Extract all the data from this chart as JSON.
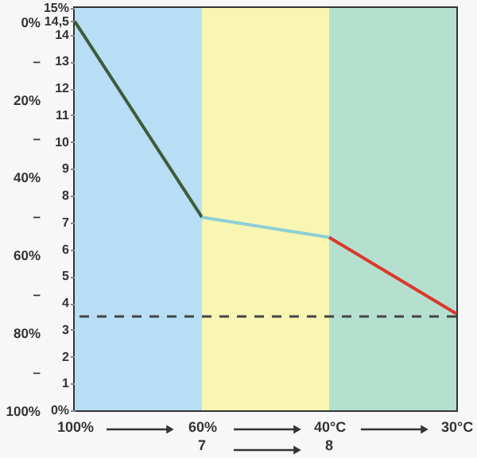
{
  "chart_data": {
    "type": "line",
    "categories": [
      "100%",
      "60%",
      "40°C",
      "30°C"
    ],
    "series": [
      {
        "color": "#3d5c3a",
        "values": [
          14.5,
          7.2,
          null,
          null
        ]
      },
      {
        "color": "#8ccfd6",
        "values": [
          null,
          7.2,
          6.45,
          null
        ]
      },
      {
        "color": "#d93a2a",
        "values": [
          null,
          null,
          6.45,
          3.6
        ]
      }
    ],
    "ylim": [
      0,
      15
    ],
    "yticks": [
      {
        "value": 0,
        "label": "0%"
      },
      1,
      2,
      3,
      4,
      5,
      6,
      7,
      8,
      9,
      10,
      11,
      12,
      13,
      14,
      {
        "value": 14.5,
        "label": "14,5"
      },
      {
        "value": 15,
        "label": "15%"
      }
    ],
    "y2lim": [
      100,
      -3.4
    ],
    "y2ticks": [
      {
        "value": 0,
        "label": "0%"
      },
      {
        "value": 10,
        "label": "–"
      },
      {
        "value": 20,
        "label": "20%"
      },
      {
        "value": 30,
        "label": "–"
      },
      {
        "value": 40,
        "label": "40%"
      },
      {
        "value": 50,
        "label": "–"
      },
      {
        "value": 60,
        "label": "60%"
      },
      {
        "value": 70,
        "label": "–"
      },
      {
        "value": 80,
        "label": "80%"
      },
      {
        "value": 90,
        "label": "–"
      },
      {
        "value": 100,
        "label": "100%"
      }
    ],
    "bands": [
      {
        "axis": "x",
        "from": "100%",
        "to": "60%",
        "color": "#b7def5"
      },
      {
        "axis": "x",
        "from": "60%",
        "to": "40°C",
        "color": "#f8f6b2"
      },
      {
        "axis": "x",
        "from": "40°C",
        "to": "30°C",
        "color": "#b5e0cf"
      }
    ],
    "ref_lines": [
      {
        "axis": "y",
        "value": 3.5,
        "color": "#444444",
        "line_style": "dashed"
      }
    ],
    "annotations": [
      "7",
      "8"
    ],
    "grid": false
  }
}
